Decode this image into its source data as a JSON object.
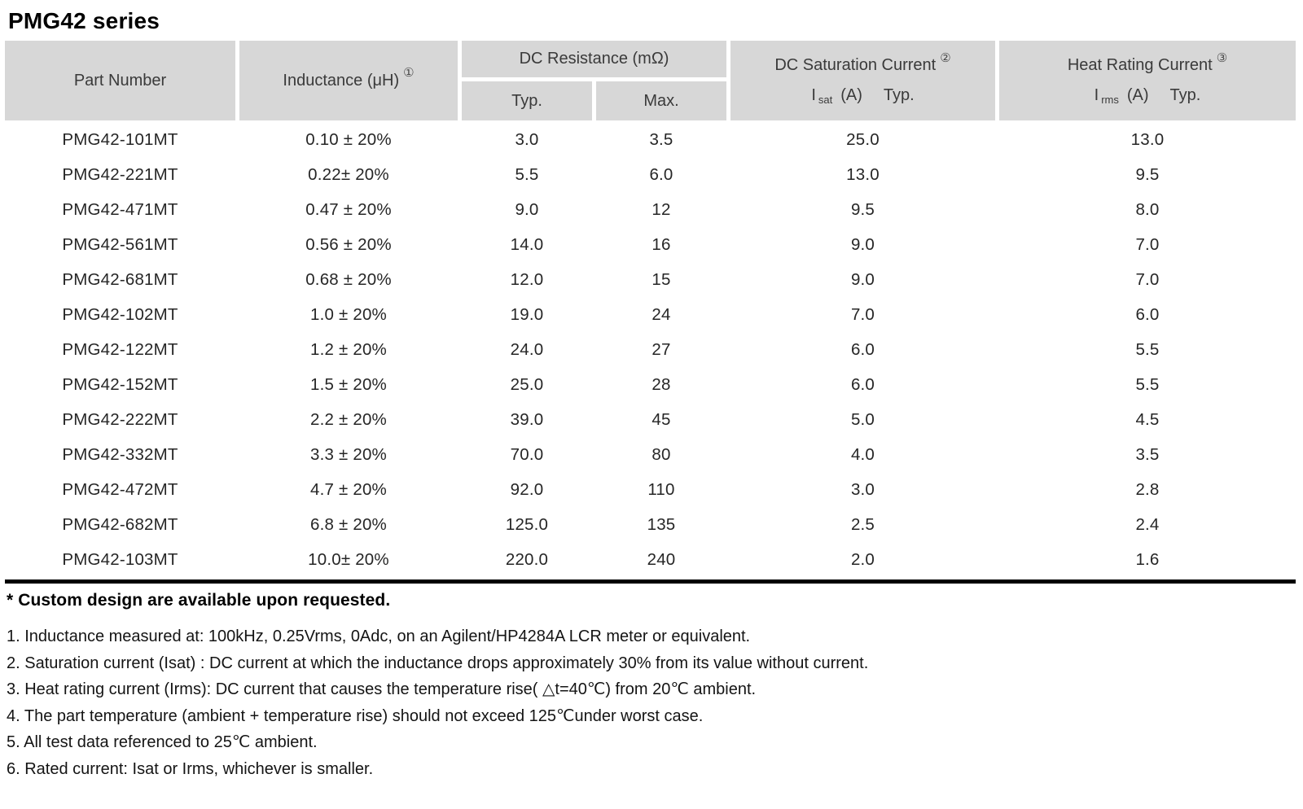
{
  "title": "PMG42 series",
  "table": {
    "headers": {
      "part_number": "Part Number",
      "inductance": "Inductance (μH)",
      "inductance_note": "①",
      "dc_resistance_group": "DC Resistance (mΩ)",
      "dc_resistance_typ": "Typ.",
      "dc_resistance_max": "Max.",
      "dc_saturation_group": "DC Saturation Current",
      "dc_saturation_note": "②",
      "dc_saturation_symbol": "I",
      "dc_saturation_sub": "sat",
      "dc_saturation_unit": "(A)",
      "dc_saturation_typ": "Typ.",
      "heat_rating_group": "Heat Rating Current",
      "heat_rating_note": "③",
      "heat_rating_symbol": "I",
      "heat_rating_sub": "rms",
      "heat_rating_unit": "(A)",
      "heat_rating_typ": "Typ."
    },
    "rows": [
      {
        "part": "PMG42-101MT",
        "inductance": "0.10 ± 20%",
        "typ": "3.0",
        "max": "3.5",
        "isat": "25.0",
        "irms": "13.0"
      },
      {
        "part": "PMG42-221MT",
        "inductance": "0.22± 20%",
        "typ": "5.5",
        "max": "6.0",
        "isat": "13.0",
        "irms": "9.5"
      },
      {
        "part": "PMG42-471MT",
        "inductance": "0.47 ± 20%",
        "typ": "9.0",
        "max": "12",
        "isat": "9.5",
        "irms": "8.0"
      },
      {
        "part": "PMG42-561MT",
        "inductance": "0.56 ± 20%",
        "typ": "14.0",
        "max": "16",
        "isat": "9.0",
        "irms": "7.0"
      },
      {
        "part": "PMG42-681MT",
        "inductance": "0.68 ± 20%",
        "typ": "12.0",
        "max": "15",
        "isat": "9.0",
        "irms": "7.0"
      },
      {
        "part": "PMG42-102MT",
        "inductance": "1.0 ± 20%",
        "typ": "19.0",
        "max": "24",
        "isat": "7.0",
        "irms": "6.0"
      },
      {
        "part": "PMG42-122MT",
        "inductance": "1.2 ± 20%",
        "typ": "24.0",
        "max": "27",
        "isat": "6.0",
        "irms": "5.5"
      },
      {
        "part": "PMG42-152MT",
        "inductance": "1.5 ± 20%",
        "typ": "25.0",
        "max": "28",
        "isat": "6.0",
        "irms": "5.5"
      },
      {
        "part": "PMG42-222MT",
        "inductance": "2.2 ± 20%",
        "typ": "39.0",
        "max": "45",
        "isat": "5.0",
        "irms": "4.5"
      },
      {
        "part": "PMG42-332MT",
        "inductance": "3.3 ± 20%",
        "typ": "70.0",
        "max": "80",
        "isat": "4.0",
        "irms": "3.5"
      },
      {
        "part": "PMG42-472MT",
        "inductance": "4.7 ± 20%",
        "typ": "92.0",
        "max": "110",
        "isat": "3.0",
        "irms": "2.8"
      },
      {
        "part": "PMG42-682MT",
        "inductance": "6.8 ± 20%",
        "typ": "125.0",
        "max": "135",
        "isat": "2.5",
        "irms": "2.4"
      },
      {
        "part": "PMG42-103MT",
        "inductance": "10.0± 20%",
        "typ": "220.0",
        "max": "240",
        "isat": "2.0",
        "irms": "1.6"
      }
    ]
  },
  "footnotes": {
    "custom": "* Custom design are available upon requested.",
    "notes": [
      "1. Inductance measured at: 100kHz, 0.25Vrms, 0Adc, on an Agilent/HP4284A LCR meter or equivalent.",
      "2. Saturation current (Isat) : DC current at which the inductance drops approximately 30% from its value without current.",
      "3. Heat rating current (Irms): DC current that causes the temperature rise( △t=40℃) from 20℃ ambient.",
      "4. The part temperature (ambient + temperature rise) should not exceed 125℃under worst case.",
      "5. All test data referenced to 25℃ ambient.",
      "6. Rated current: Isat or Irms, whichever is smaller."
    ]
  }
}
